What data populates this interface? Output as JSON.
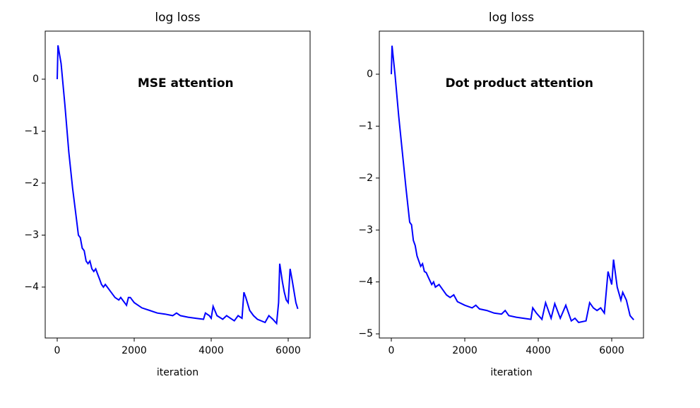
{
  "chart_data": [
    {
      "type": "line",
      "title": "log loss",
      "xlabel": "iteration",
      "annotation": "MSE attention",
      "color": "#0000ff",
      "x": [
        0,
        20,
        100,
        200,
        300,
        400,
        500,
        550,
        600,
        650,
        700,
        750,
        800,
        850,
        900,
        950,
        1000,
        1050,
        1100,
        1150,
        1200,
        1250,
        1300,
        1400,
        1500,
        1600,
        1650,
        1800,
        1850,
        1900,
        2000,
        2200,
        2400,
        2600,
        2800,
        3000,
        3100,
        3200,
        3400,
        3600,
        3800,
        3850,
        3950,
        4000,
        4050,
        4150,
        4300,
        4400,
        4500,
        4600,
        4700,
        4800,
        4850,
        4900,
        5000,
        5100,
        5200,
        5400,
        5500,
        5600,
        5700,
        5750,
        5780,
        5850,
        5900,
        5950,
        6000,
        6050,
        6100,
        6200,
        6250
      ],
      "values": [
        0,
        0.65,
        0.3,
        -0.5,
        -1.4,
        -2.1,
        -2.7,
        -3.0,
        -3.05,
        -3.25,
        -3.3,
        -3.5,
        -3.55,
        -3.5,
        -3.65,
        -3.7,
        -3.65,
        -3.75,
        -3.85,
        -3.95,
        -4.0,
        -3.95,
        -4.0,
        -4.1,
        -4.2,
        -4.25,
        -4.2,
        -4.35,
        -4.2,
        -4.2,
        -4.3,
        -4.4,
        -4.45,
        -4.5,
        -4.52,
        -4.55,
        -4.5,
        -4.55,
        -4.58,
        -4.6,
        -4.62,
        -4.5,
        -4.55,
        -4.6,
        -4.37,
        -4.55,
        -4.62,
        -4.55,
        -4.6,
        -4.65,
        -4.55,
        -4.6,
        -4.1,
        -4.2,
        -4.45,
        -4.55,
        -4.62,
        -4.68,
        -4.55,
        -4.62,
        -4.7,
        -4.3,
        -3.55,
        -3.9,
        -4.1,
        -4.25,
        -4.3,
        -3.65,
        -3.85,
        -4.3,
        -4.42
      ],
      "xlim": [
        -312,
        6569
      ],
      "ylim": [
        -4.98,
        0.925
      ],
      "xticks": [
        0,
        2000,
        4000,
        6000
      ],
      "yticks": [
        {
          "value": -4,
          "label": "−4"
        },
        {
          "value": -3,
          "label": "−3"
        },
        {
          "value": -2,
          "label": "−2"
        },
        {
          "value": -1,
          "label": "−1"
        },
        0
      ]
    },
    {
      "type": "line",
      "title": "log loss",
      "xlabel": "iteration",
      "annotation": "Dot product attention",
      "color": "#0000ff",
      "x": [
        0,
        20,
        100,
        200,
        300,
        400,
        500,
        550,
        600,
        650,
        700,
        750,
        800,
        850,
        900,
        950,
        1000,
        1100,
        1150,
        1200,
        1300,
        1400,
        1500,
        1600,
        1700,
        1800,
        2000,
        2200,
        2300,
        2400,
        2600,
        2800,
        3000,
        3100,
        3200,
        3400,
        3600,
        3800,
        3850,
        3950,
        4100,
        4200,
        4350,
        4450,
        4600,
        4750,
        4900,
        5000,
        5100,
        5300,
        5400,
        5500,
        5600,
        5700,
        5800,
        5900,
        6000,
        6050,
        6150,
        6250,
        6300,
        6400,
        6500,
        6600
      ],
      "values": [
        0,
        0.55,
        0.0,
        -0.8,
        -1.5,
        -2.2,
        -2.85,
        -2.9,
        -3.2,
        -3.3,
        -3.5,
        -3.6,
        -3.7,
        -3.65,
        -3.8,
        -3.82,
        -3.9,
        -4.05,
        -4.0,
        -4.1,
        -4.05,
        -4.15,
        -4.25,
        -4.3,
        -4.25,
        -4.38,
        -4.45,
        -4.5,
        -4.45,
        -4.52,
        -4.55,
        -4.6,
        -4.62,
        -4.55,
        -4.65,
        -4.68,
        -4.7,
        -4.72,
        -4.5,
        -4.6,
        -4.72,
        -4.4,
        -4.7,
        -4.42,
        -4.7,
        -4.45,
        -4.75,
        -4.7,
        -4.78,
        -4.75,
        -4.4,
        -4.5,
        -4.55,
        -4.5,
        -4.6,
        -3.8,
        -4.05,
        -3.57,
        -4.1,
        -4.35,
        -4.2,
        -4.35,
        -4.65,
        -4.73
      ],
      "xlim": [
        -327,
        6865
      ],
      "ylim": [
        -5.08,
        0.83
      ],
      "xticks": [
        0,
        2000,
        4000,
        6000
      ],
      "yticks": [
        {
          "value": -5,
          "label": "−5"
        },
        {
          "value": -4,
          "label": "−4"
        },
        {
          "value": -3,
          "label": "−3"
        },
        {
          "value": -2,
          "label": "−2"
        },
        {
          "value": -1,
          "label": "−1"
        },
        0
      ]
    }
  ]
}
